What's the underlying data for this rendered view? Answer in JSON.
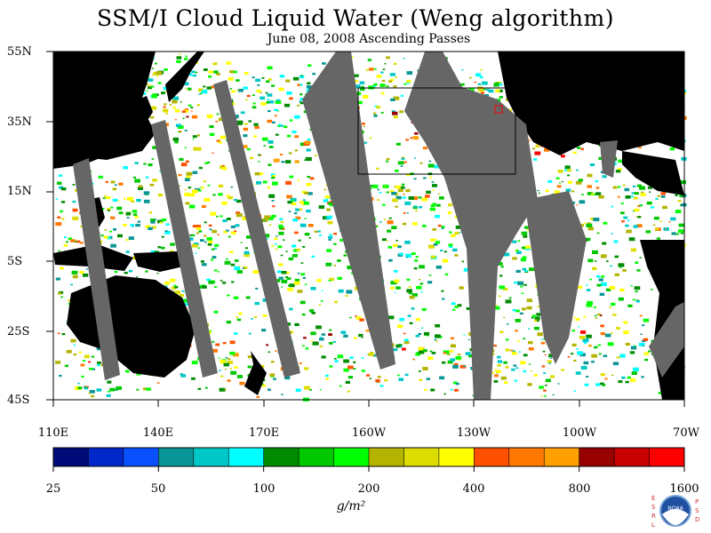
{
  "title": "SSM/I Cloud Liquid Water (Weng algorithm)",
  "subtitle": "June 08, 2008  Ascending Passes",
  "lat_labels": [
    "55N",
    "35N",
    "15N",
    "5S",
    "25S",
    "45S"
  ],
  "lon_labels": [
    "110E",
    "140E",
    "170E",
    "160W",
    "130W",
    "100W",
    "70W"
  ],
  "colorbar": {
    "tick_labels": [
      "25",
      "50",
      "100",
      "200",
      "400",
      "800",
      "1600"
    ],
    "units": "g/m²",
    "colors": [
      "#000a78",
      "#0028c8",
      "#0a50ff",
      "#0a9696",
      "#00c8c8",
      "#00ffff",
      "#008c00",
      "#00c800",
      "#00ff00",
      "#b4b400",
      "#dcdc00",
      "#ffff00",
      "#ff5000",
      "#ff7800",
      "#ffa000",
      "#960000",
      "#c80000",
      "#ff0000"
    ]
  },
  "map": {
    "land_color": "#000000",
    "no_data_color": "#666666",
    "background": "#ffffff"
  },
  "logo": {
    "left_letters": "ESRL",
    "right_letters": "PSD",
    "center_text": "NOAA"
  }
}
